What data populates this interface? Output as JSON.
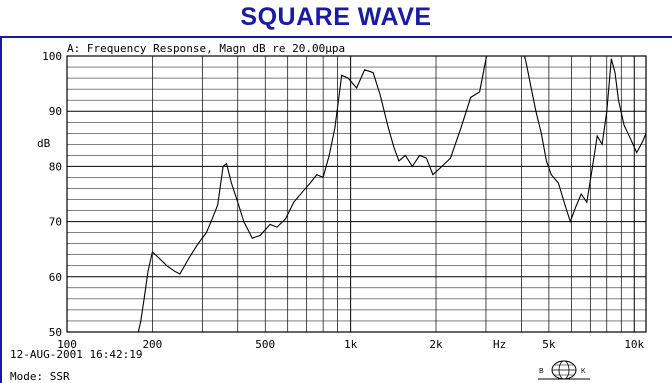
{
  "page": {
    "banner_title": "SQUARE WAVE",
    "accent_color": "#1a1aa6"
  },
  "footer": {
    "date_time": "12-AUG-2001 16:42:19",
    "mode": "Mode: SSR",
    "logo_left": "B",
    "logo_right": "K"
  },
  "chart_data": {
    "type": "line",
    "title": "A: Frequency Response, Magn dB re 20.00µpa",
    "ylabel": "dB",
    "x_unit_label": "Hz",
    "x_scale": "log",
    "xlim": [
      100,
      11000
    ],
    "ylim": [
      50,
      100
    ],
    "grid": true,
    "x_tick_labels": [
      {
        "value": 100,
        "label": "100"
      },
      {
        "value": 200,
        "label": "200"
      },
      {
        "value": 500,
        "label": "500"
      },
      {
        "value": 1000,
        "label": "1k"
      },
      {
        "value": 2000,
        "label": "2k"
      },
      {
        "value": 5000,
        "label": "5k"
      },
      {
        "value": 10000,
        "label": "10k"
      }
    ],
    "y_tick_labels": [
      {
        "value": 50,
        "label": "50"
      },
      {
        "value": 60,
        "label": "60"
      },
      {
        "value": 70,
        "label": "70"
      },
      {
        "value": 80,
        "label": "80"
      },
      {
        "value": 90,
        "label": "90"
      },
      {
        "value": 100,
        "label": "100"
      }
    ],
    "series": [
      {
        "color": "#000000",
        "points": [
          [
            175,
            48
          ],
          [
            182,
            52
          ],
          [
            187,
            56
          ],
          [
            193,
            61
          ],
          [
            200,
            64.5
          ],
          [
            210,
            63.5
          ],
          [
            225,
            62
          ],
          [
            240,
            61
          ],
          [
            250,
            60.5
          ],
          [
            270,
            63.5
          ],
          [
            290,
            66
          ],
          [
            310,
            68
          ],
          [
            325,
            70.5
          ],
          [
            340,
            73
          ],
          [
            355,
            80
          ],
          [
            365,
            80.5
          ],
          [
            380,
            77
          ],
          [
            400,
            73.5
          ],
          [
            420,
            70
          ],
          [
            450,
            67
          ],
          [
            480,
            67.5
          ],
          [
            520,
            69.5
          ],
          [
            550,
            69
          ],
          [
            590,
            70.5
          ],
          [
            630,
            73.5
          ],
          [
            680,
            75.5
          ],
          [
            720,
            77
          ],
          [
            760,
            78.5
          ],
          [
            800,
            78
          ],
          [
            840,
            82
          ],
          [
            880,
            87
          ],
          [
            930,
            96.5
          ],
          [
            980,
            96
          ],
          [
            1050,
            94.2
          ],
          [
            1120,
            97.5
          ],
          [
            1200,
            97
          ],
          [
            1270,
            93
          ],
          [
            1350,
            87.5
          ],
          [
            1420,
            83.5
          ],
          [
            1480,
            81
          ],
          [
            1560,
            82
          ],
          [
            1650,
            80
          ],
          [
            1750,
            82
          ],
          [
            1850,
            81.5
          ],
          [
            1950,
            78.5
          ],
          [
            2100,
            80
          ],
          [
            2250,
            81.5
          ],
          [
            2450,
            87
          ],
          [
            2650,
            92.5
          ],
          [
            2850,
            93.5
          ],
          [
            3000,
            99.5
          ],
          [
            3100,
            102
          ],
          [
            4000,
            102
          ],
          [
            4150,
            99
          ],
          [
            4300,
            95
          ],
          [
            4500,
            90
          ],
          [
            4700,
            86
          ],
          [
            4900,
            81
          ],
          [
            5100,
            78.5
          ],
          [
            5400,
            77
          ],
          [
            5700,
            73
          ],
          [
            5950,
            70
          ],
          [
            6200,
            72.5
          ],
          [
            6500,
            75
          ],
          [
            6800,
            73.5
          ],
          [
            7100,
            79.5
          ],
          [
            7400,
            85.5
          ],
          [
            7700,
            84
          ],
          [
            8000,
            90
          ],
          [
            8300,
            99.5
          ],
          [
            8550,
            97
          ],
          [
            8800,
            92
          ],
          [
            9200,
            87.5
          ],
          [
            9700,
            85
          ],
          [
            10200,
            82.5
          ],
          [
            10700,
            84.5
          ],
          [
            11000,
            86
          ]
        ]
      }
    ]
  }
}
